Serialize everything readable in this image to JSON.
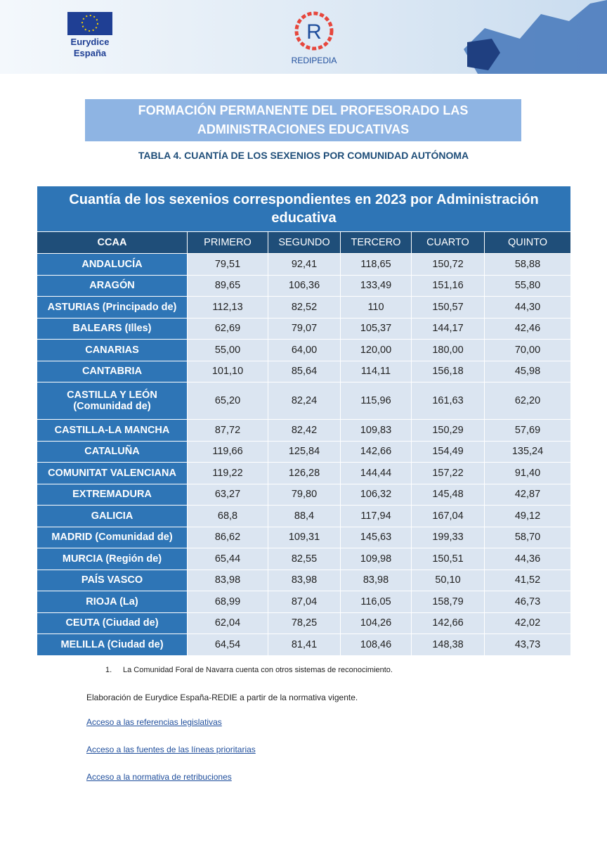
{
  "header": {
    "logo_left_line1": "Eurydice",
    "logo_left_line2": "España",
    "logo_center_letter": "R",
    "logo_center_name": "REDIPEDIA"
  },
  "title": "FORMACIÓN PERMANENTE DEL PROFESORADO LAS ADMINISTRACIONES EDUCATIVAS",
  "subtitle": "TABLA 4. CUANTÍA DE LOS SEXENIOS POR COMUNIDAD AUTÓNOMA",
  "table": {
    "caption": "Cuantía de los sexenios correspondientes en 2023 por Administración educativa",
    "columns": [
      "CCAA",
      "PRIMERO",
      "SEGUNDO",
      "TERCERO",
      "CUARTO",
      "QUINTO"
    ],
    "rows": [
      [
        "ANDALUCÍA",
        "79,51",
        "92,41",
        "118,65",
        "150,72",
        "58,88"
      ],
      [
        "ARAGÓN",
        "89,65",
        "106,36",
        "133,49",
        "151,16",
        "55,80"
      ],
      [
        "ASTURIAS (Principado de)",
        "112,13",
        "82,52",
        "110",
        "150,57",
        "44,30"
      ],
      [
        "BALEARS (Illes)",
        "62,69",
        "79,07",
        "105,37",
        "144,17",
        "42,46"
      ],
      [
        "CANARIAS",
        "55,00",
        "64,00",
        "120,00",
        "180,00",
        "70,00"
      ],
      [
        "CANTABRIA",
        "101,10",
        "85,64",
        "114,11",
        "156,18",
        "45,98"
      ],
      [
        "CASTILLA Y LEÓN (Comunidad de)",
        "65,20",
        "82,24",
        "115,96",
        "161,63",
        "62,20"
      ],
      [
        "CASTILLA-LA MANCHA",
        "87,72",
        "82,42",
        "109,83",
        "150,29",
        "57,69"
      ],
      [
        "CATALUÑA",
        "119,66",
        "125,84",
        "142,66",
        "154,49",
        "135,24"
      ],
      [
        "COMUNITAT VALENCIANA",
        "119,22",
        "126,28",
        "144,44",
        "157,22",
        "91,40"
      ],
      [
        "EXTREMADURA",
        "63,27",
        "79,80",
        "106,32",
        "145,48",
        "42,87"
      ],
      [
        "GALICIA",
        "68,8",
        "88,4",
        "117,94",
        "167,04",
        "49,12"
      ],
      [
        "MADRID (Comunidad de)",
        "86,62",
        "109,31",
        "145,63",
        "199,33",
        "58,70"
      ],
      [
        "MURCIA (Región de)",
        "65,44",
        "82,55",
        "109,98",
        "150,51",
        "44,36"
      ],
      [
        "PAÍS VASCO",
        "83,98",
        "83,98",
        "83,98",
        "50,10",
        "41,52"
      ],
      [
        "RIOJA (La)",
        "68,99",
        "87,04",
        "116,05",
        "158,79",
        "46,73"
      ],
      [
        "CEUTA (Ciudad de)",
        "62,04",
        "78,25",
        "104,26",
        "142,66",
        "42,02"
      ],
      [
        "MELILLA (Ciudad de)",
        "64,54",
        "81,41",
        "108,46",
        "148,38",
        "43,73"
      ]
    ]
  },
  "footnote": {
    "number": "1.",
    "text": "La Comunidad Foral de Navarra cuenta con otros sistemas de reconocimiento."
  },
  "source": "Elaboración de Eurydice España-REDIE a partir de la normativa vigente.",
  "links": [
    "Acceso a las referencias legislativas",
    "Acceso a las fuentes de las líneas prioritarias",
    "Acceso a la normativa de retribuciones"
  ]
}
